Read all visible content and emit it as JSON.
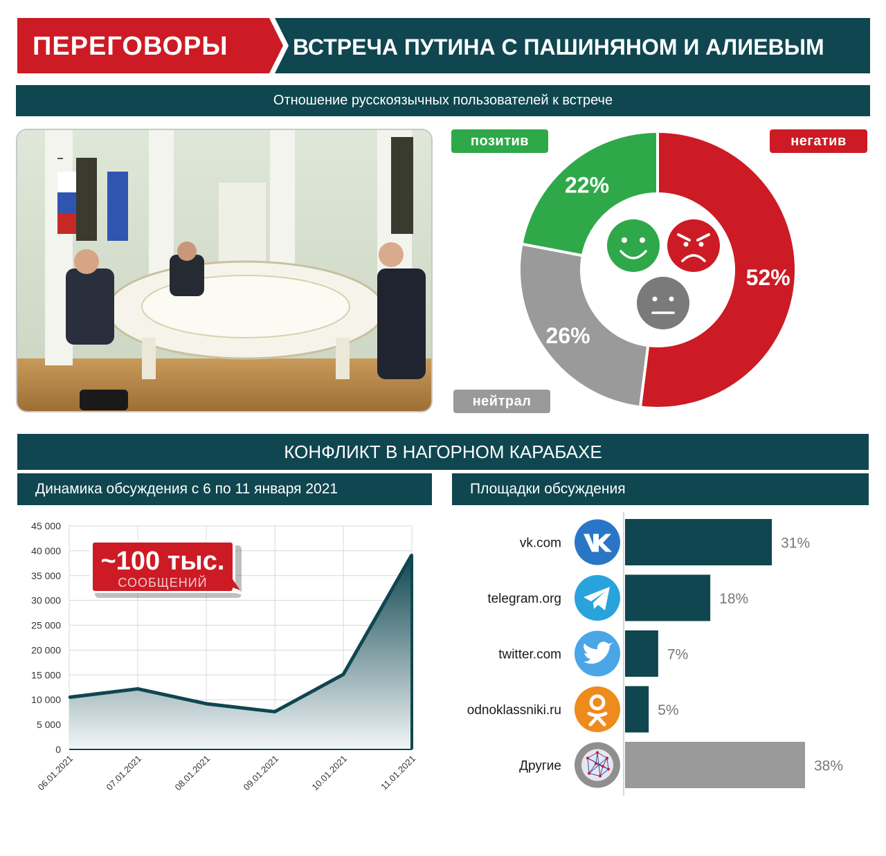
{
  "header": {
    "category": "ПЕРЕГОВОРЫ",
    "title": "ВСТРЕЧА ПУТИНА С ПАШИНЯНОМ И АЛИЕВЫМ",
    "subtitle": "Отношение русскоязычных пользователей к встрече"
  },
  "colors": {
    "teal": "#0f4650",
    "red": "#cc1b24",
    "green": "#2fa84a",
    "gray": "#9a9a9a"
  },
  "sentiment": {
    "positive_label": "позитив",
    "negative_label": "негатив",
    "neutral_label": "нейтрал"
  },
  "section2": {
    "title": "КОНФЛИКТ В НАГОРНОМ КАРАБАХЕ",
    "dynamics_title": "Динамика обсуждения с 6 по 11 января 2021",
    "platforms_title": "Площадки обсуждения",
    "callout_value": "~100 тыс.",
    "callout_label": "СООБЩЕНИЙ"
  },
  "chart_data": [
    {
      "type": "pie",
      "slices": [
        {
          "label": "позитив",
          "value": 22,
          "display": "22%",
          "color": "#2fa84a",
          "icon": "smile-face-icon"
        },
        {
          "label": "нейтрал",
          "value": 26,
          "display": "26%",
          "color": "#9a9a9a",
          "icon": "neutral-face-icon"
        },
        {
          "label": "негатив",
          "value": 52,
          "display": "52%",
          "color": "#cc1b24",
          "icon": "angry-face-icon"
        }
      ]
    },
    {
      "type": "area",
      "x": [
        "06.01.2021",
        "07.01.2021",
        "08.01.2021",
        "09.01.2021",
        "10.01.2021",
        "11.01.2021"
      ],
      "values": [
        10500,
        12200,
        9200,
        7600,
        15100,
        39200
      ],
      "ylim": [
        0,
        45000
      ],
      "yticks": [
        0,
        5000,
        10000,
        15000,
        20000,
        25000,
        30000,
        35000,
        40000,
        45000
      ],
      "ytick_labels": [
        "0",
        "5 000",
        "10 000",
        "15 000",
        "20 000",
        "25 000",
        "30 000",
        "35 000",
        "40 000",
        "45 000"
      ],
      "grid": true
    },
    {
      "type": "bar",
      "orientation": "horizontal",
      "categories": [
        "vk.com",
        "telegram.org",
        "twitter.com",
        "odnoklassniki.ru",
        "Другие"
      ],
      "values": [
        31,
        18,
        7,
        5,
        38
      ],
      "value_labels": [
        "31%",
        "18%",
        "7%",
        "5%",
        "38%"
      ],
      "icons": [
        "vk-icon",
        "telegram-icon",
        "twitter-icon",
        "odnoklassniki-icon",
        "network-icon"
      ],
      "bar_colors": [
        "#0f4650",
        "#0f4650",
        "#0f4650",
        "#0f4650",
        "#9a9a9a"
      ]
    }
  ]
}
